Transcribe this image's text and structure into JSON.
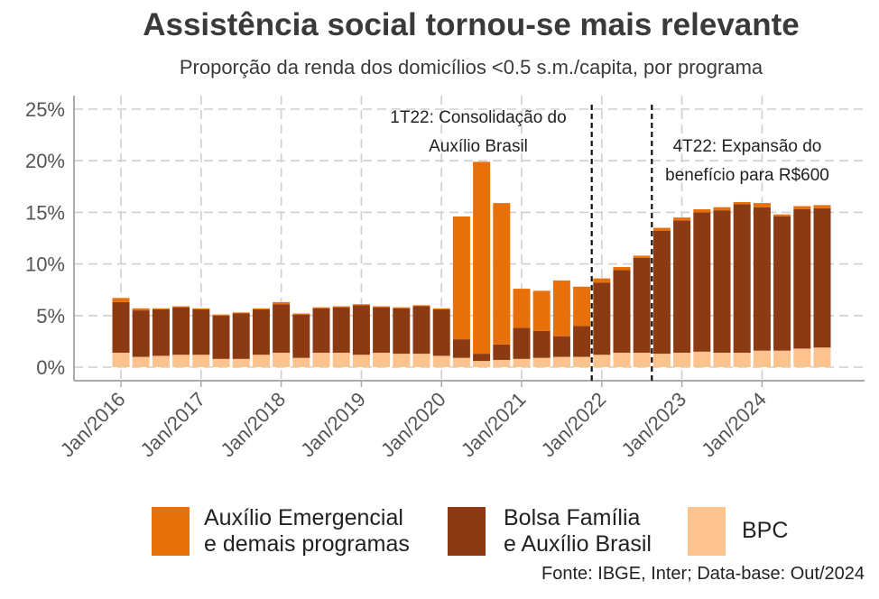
{
  "title": "Assistência social tornou-se mais relevante",
  "subtitle": "Proporção da renda dos domicílios <0.5 s.m./capita, por programa",
  "source": "Fonte: IBGE, Inter; Data-base: Out/2024",
  "colors": {
    "auxilio": "#e8700a",
    "bolsa": "#8b3a14",
    "bpc": "#fdc38e",
    "grid": "#cfcfcf",
    "axis": "#aaaaaa",
    "text": "#555555"
  },
  "legend": [
    {
      "key": "auxilio",
      "line1": "Auxílio Emergencial",
      "line2": "e demais programas"
    },
    {
      "key": "bolsa",
      "line1": "Bolsa Família",
      "line2": "e Auxílio Brasil"
    },
    {
      "key": "bpc",
      "line1": "BPC",
      "line2": ""
    }
  ],
  "chart_data": {
    "type": "bar",
    "stacked": true,
    "ylim": [
      0,
      25
    ],
    "yticks": [
      "0%",
      "5%",
      "10%",
      "15%",
      "20%",
      "25%"
    ],
    "xticks": [
      "Jan/2016",
      "Jan/2017",
      "Jan/2018",
      "Jan/2019",
      "Jan/2020",
      "Jan/2021",
      "Jan/2022",
      "Jan/2023",
      "Jan/2024"
    ],
    "grid": true,
    "legend_position": "bottom",
    "categories": [
      "1T16",
      "2T16",
      "3T16",
      "4T16",
      "1T17",
      "2T17",
      "3T17",
      "4T17",
      "1T18",
      "2T18",
      "3T18",
      "4T18",
      "1T19",
      "2T19",
      "3T19",
      "4T19",
      "1T20",
      "2T20",
      "3T20",
      "4T20",
      "1T21",
      "2T21",
      "3T21",
      "4T21",
      "1T22",
      "2T22",
      "3T22",
      "4T22",
      "1T23",
      "2T23",
      "3T23",
      "4T23",
      "1T24",
      "2T24",
      "3T24",
      "4T24"
    ],
    "series": [
      {
        "name": "BPC",
        "values": [
          1.4,
          1.0,
          1.1,
          1.2,
          1.2,
          0.8,
          0.8,
          1.2,
          1.4,
          0.9,
          1.4,
          1.4,
          1.2,
          1.4,
          1.3,
          1.3,
          1.1,
          0.9,
          0.6,
          0.7,
          0.8,
          0.9,
          1.0,
          1.0,
          1.2,
          1.4,
          1.4,
          1.3,
          1.4,
          1.5,
          1.4,
          1.4,
          1.6,
          1.6,
          1.8,
          1.9
        ]
      },
      {
        "name": "Bolsa Família e Auxílio Brasil",
        "values": [
          4.9,
          4.5,
          4.5,
          4.6,
          4.4,
          4.2,
          4.4,
          4.4,
          4.7,
          4.2,
          4.3,
          4.4,
          4.8,
          4.4,
          4.4,
          4.6,
          4.5,
          1.8,
          0.7,
          1.5,
          3.0,
          2.6,
          2.0,
          3.0,
          7.0,
          8.0,
          9.2,
          11.9,
          12.8,
          13.5,
          13.8,
          14.4,
          13.9,
          13.0,
          13.5,
          13.5
        ]
      },
      {
        "name": "Auxílio Emergencial e demais programas",
        "values": [
          0.4,
          0.2,
          0.1,
          0.1,
          0.1,
          0.1,
          0.1,
          0.1,
          0.2,
          0.1,
          0.1,
          0.1,
          0.1,
          0.1,
          0.1,
          0.1,
          0.1,
          11.9,
          18.6,
          13.7,
          3.8,
          3.9,
          5.4,
          3.8,
          0.4,
          0.3,
          0.2,
          0.3,
          0.3,
          0.3,
          0.3,
          0.2,
          0.4,
          0.2,
          0.3,
          0.3
        ]
      }
    ],
    "vlines": [
      {
        "after_category": "4T21",
        "label_lines": [
          "1T22: Consolidação do",
          "Auxílio Brasil"
        ]
      },
      {
        "after_category": "3T22",
        "label_lines": [
          "4T22: Expansão do",
          "benefício para R$600"
        ]
      }
    ]
  }
}
